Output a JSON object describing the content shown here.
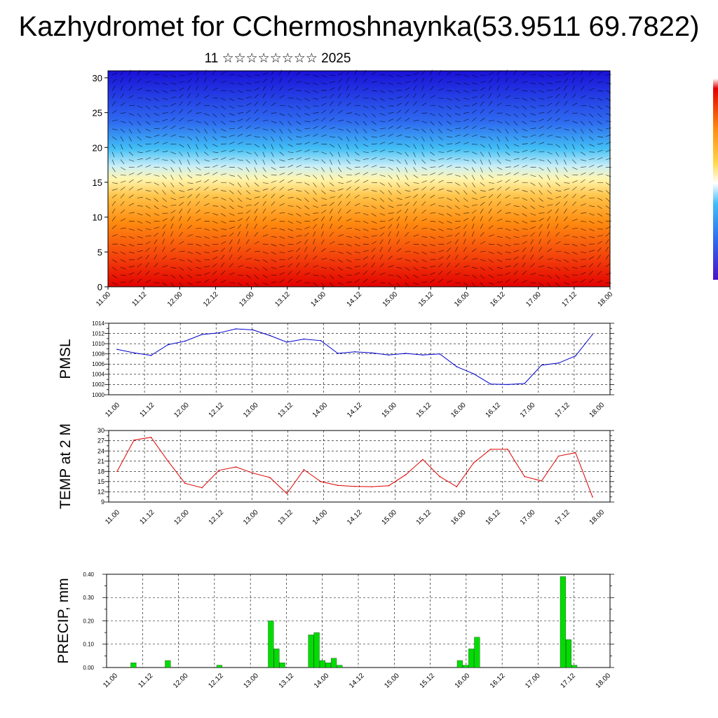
{
  "title": "Kazhydromet for CChermoshnaynka(53.9511 69.7822)",
  "subtitle": "11 ☆☆☆☆☆☆☆☆ 2025",
  "x_ticks": [
    "11.00",
    "11.12",
    "12.00",
    "12.12",
    "13.00",
    "13.12",
    "14.00",
    "14.12",
    "15.00",
    "15.12",
    "16.00",
    "16.12",
    "17.00",
    "17.12",
    "18.00"
  ],
  "colors": {
    "pmsl": "#0000cc",
    "temp": "#dd0000",
    "precip": "#00dd00"
  },
  "chart_data": [
    {
      "type": "heatmap",
      "name": "vertical-cross-section",
      "title": "",
      "xlabel": "",
      "ylabel": "",
      "y_ticks": [
        "0",
        "5",
        "10",
        "15",
        "20",
        "25",
        "30"
      ],
      "ylim": [
        0,
        31
      ],
      "xlim": [
        0,
        84
      ],
      "overlay": "wind barbs",
      "colorscale": [
        "#1a10d8",
        "#2f6cf0",
        "#42bff5",
        "#c8eef8",
        "#fff6b0",
        "#ffc44a",
        "#ff8c10",
        "#f23a0a",
        "#e20000"
      ]
    },
    {
      "type": "line",
      "name": "PMSL",
      "ylabel": "PMSL",
      "ylim": [
        1000,
        1014
      ],
      "y_ticks": [
        "1000",
        "1002",
        "1004",
        "1006",
        "1008",
        "1010",
        "1012",
        "1014"
      ],
      "x": [
        0,
        3,
        6,
        9,
        12,
        15,
        18,
        21,
        24,
        27,
        30,
        33,
        36,
        39,
        42,
        45,
        48,
        51,
        54,
        57,
        60,
        63,
        66,
        69,
        72,
        75,
        78,
        81,
        84
      ],
      "values": [
        1008.9,
        1008.2,
        1007.7,
        1009.8,
        1010.5,
        1011.8,
        1012.1,
        1012.9,
        1012.7,
        1011.6,
        1010.3,
        1010.9,
        1010.6,
        1008.1,
        1008.4,
        1008.2,
        1007.8,
        1008.1,
        1007.8,
        1008.0,
        1005.5,
        1004.1,
        1002.1,
        1002.0,
        1002.2,
        1005.8,
        1006.2,
        1007.6,
        1011.8
      ]
    },
    {
      "type": "line",
      "name": "TEMP at 2 M",
      "ylabel": "TEMP at 2 M",
      "ylim": [
        9,
        30
      ],
      "y_ticks": [
        "9",
        "12",
        "15",
        "18",
        "21",
        "24",
        "27",
        "30"
      ],
      "x": [
        0,
        3,
        6,
        9,
        12,
        15,
        18,
        21,
        24,
        27,
        30,
        33,
        36,
        39,
        42,
        45,
        48,
        51,
        54,
        57,
        60,
        63,
        66,
        69,
        72,
        75,
        78,
        81,
        84
      ],
      "values": [
        18.0,
        27.2,
        28.0,
        21.0,
        14.5,
        13.2,
        18.3,
        19.3,
        17.5,
        16.2,
        11.5,
        18.5,
        15.0,
        13.9,
        13.6,
        13.5,
        13.8,
        17.0,
        21.5,
        16.5,
        13.5,
        20.5,
        24.5,
        24.5,
        16.5,
        15.2,
        22.5,
        23.5,
        10.5
      ]
    },
    {
      "type": "bar",
      "name": "PRECIP, mm",
      "ylabel": "PRECIP, mm",
      "ylim": [
        0,
        0.4
      ],
      "y_ticks": [
        "0.00",
        "0.10",
        "0.20",
        "0.30",
        "0.40"
      ],
      "x": [
        3,
        9,
        18,
        27,
        28,
        29,
        34,
        35,
        36,
        37,
        38,
        39,
        60,
        61,
        62,
        63,
        78,
        79,
        80
      ],
      "values": [
        0.02,
        0.03,
        0.01,
        0.2,
        0.08,
        0.02,
        0.14,
        0.15,
        0.03,
        0.02,
        0.04,
        0.01,
        0.03,
        0.01,
        0.08,
        0.13,
        0.39,
        0.12,
        0.01
      ]
    }
  ]
}
